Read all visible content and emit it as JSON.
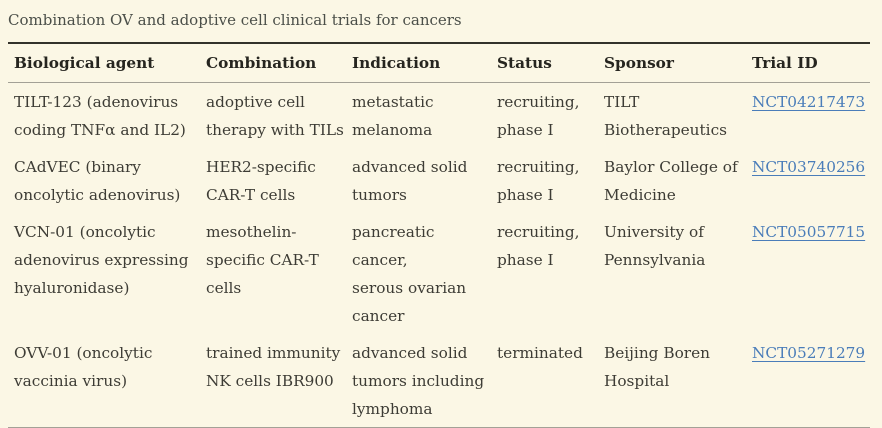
{
  "caption": "Combination OV and adoptive cell clinical trials for cancers",
  "colors": {
    "background": "#fbf7e5",
    "text": "#3d3c35",
    "header_text": "#26251f",
    "caption_text": "#4b4f49",
    "link": "#4a7db9",
    "rule_dark": "#33322b",
    "rule_light": "#a3a196"
  },
  "table": {
    "headers": [
      "Biological agent",
      "Combination",
      "Indication",
      "Status",
      "Sponsor",
      "Trial ID"
    ],
    "rows": [
      {
        "agent": "TILT-123 (adenovirus\ncoding TNFα and IL2)",
        "combination": "adoptive cell\ntherapy with TILs",
        "indication": "metastatic\nmelanoma",
        "status": "recruiting,\nphase I",
        "sponsor": "TILT\nBiotherapeutics",
        "trial_id": "NCT04217473"
      },
      {
        "agent": "CAdVEC (binary\noncolytic adenovirus)",
        "combination": "HER2-specific\nCAR-T cells",
        "indication": "advanced solid\ntumors",
        "status": "recruiting,\nphase I",
        "sponsor": "Baylor College of\nMedicine",
        "trial_id": "NCT03740256"
      },
      {
        "agent": "VCN-01 (oncolytic\nadenovirus expressing\nhyaluronidase)",
        "combination": "mesothelin-\nspecific CAR-T\ncells",
        "indication": "pancreatic cancer,\nserous ovarian\ncancer",
        "status": "recruiting,\nphase I",
        "sponsor": "University of\nPennsylvania",
        "trial_id": "NCT05057715"
      },
      {
        "agent": "OVV-01 (oncolytic\nvaccinia virus)",
        "combination": "trained immunity\nNK cells IBR900",
        "indication": "advanced solid\ntumors including\nlymphoma",
        "status": "terminated",
        "sponsor": "Beijing Boren\nHospital",
        "trial_id": "NCT05271279"
      }
    ]
  }
}
